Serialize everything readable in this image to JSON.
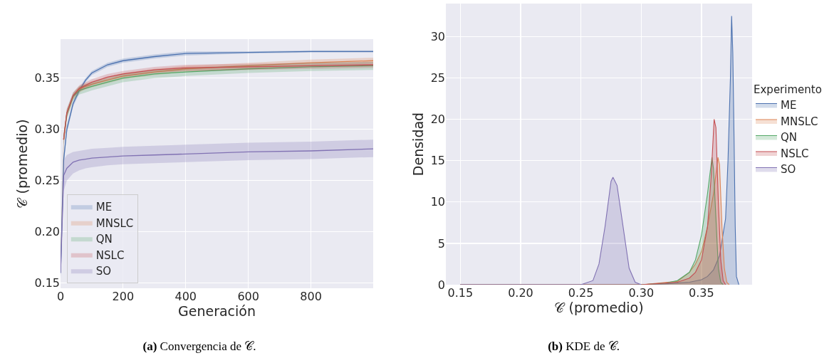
{
  "chart_data": [
    {
      "type": "line",
      "title": "(a) Convergencia de 𝒞.",
      "xlabel": "Generación",
      "ylabel": "𝒞 (promedio)",
      "xlim": [
        0,
        999
      ],
      "xticks": [
        0,
        200,
        400,
        600,
        800
      ],
      "ylim": [
        0.145,
        0.388
      ],
      "yticks": [
        {
          "value": 0.15,
          "label": "0.15"
        },
        {
          "value": 0.2,
          "label": "0.20"
        },
        {
          "value": 0.25,
          "label": "0.25"
        },
        {
          "value": 0.3,
          "label": "0.30"
        },
        {
          "value": 0.35,
          "label": "0.35"
        }
      ],
      "grid": true,
      "legend": "bottom left",
      "marker": "none",
      "line_style": "solid",
      "x": [
        0,
        10,
        20,
        40,
        60,
        80,
        100,
        150,
        200,
        300,
        400,
        600,
        800,
        999
      ],
      "series": [
        {
          "name": "ME",
          "color": "#4c72b0",
          "values": [
            0.16,
            0.27,
            0.3,
            0.325,
            0.338,
            0.348,
            0.355,
            0.363,
            0.367,
            0.371,
            0.374,
            0.375,
            0.376,
            0.376
          ],
          "lower": [
            0.155,
            0.265,
            0.296,
            0.322,
            0.335,
            0.346,
            0.353,
            0.361,
            0.365,
            0.369,
            0.372,
            0.374,
            0.375,
            0.375
          ],
          "upper": [
            0.165,
            0.275,
            0.304,
            0.328,
            0.341,
            0.35,
            0.357,
            0.365,
            0.369,
            0.373,
            0.376,
            0.376,
            0.377,
            0.377
          ]
        },
        {
          "name": "MNSLC",
          "color": "#dd8452",
          "values": [
            null,
            0.29,
            0.315,
            0.332,
            0.339,
            0.342,
            0.344,
            0.348,
            0.352,
            0.356,
            0.359,
            0.362,
            0.365,
            0.367
          ],
          "lower": [
            0.165,
            0.284,
            0.311,
            0.329,
            0.336,
            0.339,
            0.341,
            0.345,
            0.349,
            0.353,
            0.356,
            0.359,
            0.362,
            0.364
          ],
          "upper": [
            0.175,
            0.296,
            0.319,
            0.335,
            0.342,
            0.345,
            0.347,
            0.351,
            0.355,
            0.359,
            0.362,
            0.365,
            0.368,
            0.37
          ]
        },
        {
          "name": "QN",
          "color": "#55a868",
          "values": [
            null,
            0.29,
            0.315,
            0.332,
            0.338,
            0.34,
            0.342,
            0.346,
            0.35,
            0.354,
            0.356,
            0.359,
            0.361,
            0.362
          ],
          "lower": [
            0.164,
            0.284,
            0.31,
            0.328,
            0.334,
            0.336,
            0.338,
            0.342,
            0.346,
            0.35,
            0.352,
            0.355,
            0.357,
            0.358
          ],
          "upper": [
            0.176,
            0.296,
            0.32,
            0.336,
            0.342,
            0.344,
            0.346,
            0.35,
            0.354,
            0.358,
            0.36,
            0.363,
            0.365,
            0.366
          ]
        },
        {
          "name": "NSLC",
          "color": "#c44e52",
          "values": [
            null,
            0.29,
            0.316,
            0.333,
            0.34,
            0.343,
            0.346,
            0.351,
            0.354,
            0.358,
            0.36,
            0.361,
            0.362,
            0.363
          ],
          "lower": [
            0.165,
            0.285,
            0.312,
            0.33,
            0.337,
            0.34,
            0.343,
            0.348,
            0.351,
            0.355,
            0.357,
            0.358,
            0.359,
            0.36
          ],
          "upper": [
            0.175,
            0.295,
            0.32,
            0.336,
            0.343,
            0.346,
            0.349,
            0.354,
            0.357,
            0.361,
            0.363,
            0.364,
            0.365,
            0.366
          ]
        },
        {
          "name": "SO",
          "color": "#8172b3",
          "values": [
            0.16,
            0.255,
            0.262,
            0.268,
            0.27,
            0.271,
            0.272,
            0.273,
            0.274,
            0.275,
            0.276,
            0.278,
            0.279,
            0.281
          ],
          "lower": [
            0.155,
            0.24,
            0.25,
            0.257,
            0.26,
            0.262,
            0.263,
            0.265,
            0.266,
            0.267,
            0.268,
            0.27,
            0.271,
            0.273
          ],
          "upper": [
            0.165,
            0.27,
            0.275,
            0.278,
            0.279,
            0.28,
            0.281,
            0.282,
            0.283,
            0.284,
            0.285,
            0.287,
            0.288,
            0.29
          ]
        }
      ]
    },
    {
      "type": "area",
      "title": "(b) KDE de 𝒞.",
      "xlabel": "𝒞 (promedio)",
      "ylabel": "Densidad",
      "legend_title": "Experimento",
      "xlim": [
        0.138,
        0.392
      ],
      "xticks": [
        {
          "value": 0.15,
          "label": "0.15"
        },
        {
          "value": 0.2,
          "label": "0.20"
        },
        {
          "value": 0.25,
          "label": "0.25"
        },
        {
          "value": 0.3,
          "label": "0.30"
        },
        {
          "value": 0.35,
          "label": "0.35"
        }
      ],
      "ylim": [
        0,
        34
      ],
      "yticks": [
        0,
        5,
        10,
        15,
        20,
        25,
        30
      ],
      "grid": true,
      "legend": "right",
      "line_style": "solid",
      "series": [
        {
          "name": "ME",
          "color": "#4c72b0",
          "x": [
            0.15,
            0.3,
            0.32,
            0.34,
            0.35,
            0.355,
            0.36,
            0.365,
            0.37,
            0.372,
            0.374,
            0.375,
            0.376,
            0.377,
            0.378,
            0.379,
            0.381
          ],
          "values": [
            0,
            0,
            0.1,
            0.3,
            0.6,
            1,
            1.8,
            3.5,
            8,
            15,
            25,
            32.5,
            28,
            18,
            7,
            1,
            0
          ]
        },
        {
          "name": "MNSLC",
          "color": "#dd8452",
          "x": [
            0.15,
            0.3,
            0.33,
            0.34,
            0.345,
            0.35,
            0.355,
            0.36,
            0.3637,
            0.365,
            0.367,
            0.369,
            0.371,
            0.373
          ],
          "values": [
            0,
            0,
            0.4,
            1.5,
            2.5,
            4,
            7,
            11,
            15.4,
            14.5,
            7,
            2,
            0.3,
            0
          ]
        },
        {
          "name": "QN",
          "color": "#55a868",
          "x": [
            0.15,
            0.3,
            0.32,
            0.33,
            0.34,
            0.345,
            0.35,
            0.355,
            0.3587,
            0.36,
            0.362,
            0.364,
            0.366,
            0.368
          ],
          "values": [
            0,
            0,
            0.2,
            0.5,
            1.5,
            3,
            6,
            11,
            15.4,
            14,
            8,
            2,
            0.3,
            0
          ]
        },
        {
          "name": "NSLC",
          "color": "#c44e52",
          "x": [
            0.15,
            0.3,
            0.33,
            0.34,
            0.345,
            0.35,
            0.355,
            0.358,
            0.3605,
            0.362,
            0.364,
            0.366,
            0.368,
            0.37
          ],
          "values": [
            0,
            0,
            0.3,
            0.8,
            1.5,
            3,
            7,
            13,
            20,
            19,
            10,
            3,
            0.5,
            0
          ]
        },
        {
          "name": "SO",
          "color": "#8172b3",
          "x": [
            0.15,
            0.25,
            0.26,
            0.265,
            0.27,
            0.275,
            0.2766,
            0.28,
            0.285,
            0.29,
            0.295,
            0.3
          ],
          "values": [
            0,
            0,
            0.5,
            2.5,
            7,
            12.5,
            13,
            12,
            7,
            2,
            0.3,
            0
          ]
        }
      ]
    }
  ]
}
